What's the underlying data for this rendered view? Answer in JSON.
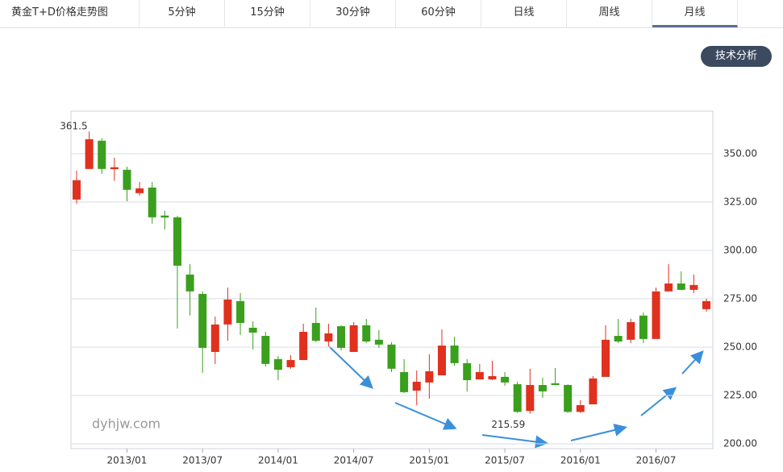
{
  "header": {
    "title": "黄金T+D价格走势图",
    "tabs": [
      "5分钟",
      "15分钟",
      "30分钟",
      "60分钟",
      "日线",
      "周线",
      "月线"
    ],
    "button": "技术分析"
  },
  "chart_data": {
    "type": "candlestick",
    "watermark": "dyhjw.com",
    "categories": [
      null,
      null,
      null,
      null,
      "2013/01",
      null,
      null,
      null,
      null,
      null,
      "2013/07",
      null,
      null,
      null,
      null,
      null,
      "2014/01",
      null,
      null,
      null,
      null,
      null,
      "2014/07",
      null,
      null,
      null,
      null,
      null,
      "2015/01",
      null,
      null,
      null,
      null,
      null,
      "2015/07",
      null,
      null,
      null,
      null,
      null,
      "2016/01",
      null,
      null,
      null,
      null,
      null,
      "2016/07",
      null,
      null,
      null,
      null
    ],
    "open": [
      326.3,
      342.1,
      356.7,
      342,
      341.7,
      329.6,
      332.5,
      318,
      317.1,
      287.5,
      277.5,
      247.5,
      261.7,
      273.8,
      260,
      255.8,
      243.8,
      239.6,
      243.3,
      262.5,
      252.9,
      260.8,
      247.5,
      261.3,
      253.8,
      251.3,
      237.1,
      227.5,
      231.7,
      235.4,
      250.8,
      241.7,
      233.3,
      233.3,
      234.6,
      230.8,
      217,
      230.4,
      231.3,
      230.4,
      216.5,
      220.4,
      234.6,
      255.8,
      253.8,
      266.3,
      254.2,
      278.8,
      282.9,
      279.6,
      269.6
    ],
    "high": [
      341.3,
      361.5,
      358,
      348,
      343.3,
      335.4,
      335.4,
      320.4,
      317.9,
      292.9,
      278.8,
      265.8,
      280.8,
      277.9,
      263.3,
      257.9,
      245.4,
      245.8,
      262.1,
      270.4,
      262.1,
      261.3,
      262.9,
      264.6,
      258.8,
      252.5,
      243.8,
      237.9,
      246.3,
      259.2,
      255.4,
      243.8,
      241.3,
      242.9,
      237.1,
      232.1,
      238.8,
      234.2,
      239.2,
      230.8,
      222.5,
      235,
      261.3,
      264.6,
      264.6,
      267.9,
      280.8,
      292.9,
      289.2,
      287.5,
      275
    ],
    "low": [
      324.2,
      342.1,
      339.6,
      336,
      325.4,
      328.3,
      313.8,
      310.8,
      259.6,
      266.3,
      236.7,
      241.3,
      253.3,
      256.3,
      248.8,
      240,
      232.9,
      238.8,
      243.3,
      252.5,
      250.4,
      248.3,
      247.5,
      252.1,
      249.6,
      237.1,
      226.3,
      220,
      223.3,
      235.4,
      240.4,
      227.1,
      233.3,
      232.9,
      230,
      216,
      215.59,
      223.8,
      230.4,
      216,
      216,
      220.4,
      234.6,
      252.1,
      252.1,
      252.1,
      254.2,
      278.8,
      279.6,
      277.9,
      268.3
    ],
    "close": [
      336.3,
      357.5,
      342.1,
      343,
      331.3,
      332.1,
      317.1,
      317,
      292.1,
      278.8,
      249.6,
      261.7,
      274.6,
      262.5,
      257.5,
      241.3,
      238.3,
      243.3,
      257.9,
      253.3,
      257.1,
      249.6,
      261.3,
      252.9,
      251.3,
      238.8,
      226.7,
      232.1,
      237.5,
      250.8,
      241.7,
      232.9,
      237.1,
      235,
      231.7,
      216.5,
      230.4,
      227.1,
      230.4,
      216.5,
      220,
      233.8,
      253.8,
      252.9,
      262.9,
      254.2,
      278.8,
      282.9,
      279.6,
      282.1,
      273.8
    ],
    "up_color": "#e0301e",
    "down_color": "#3a9f1c",
    "ylim": [
      197.5,
      372
    ],
    "yticks": [
      {
        "value": 200,
        "label": "200.00"
      },
      {
        "value": 225,
        "label": "225.00"
      },
      {
        "value": 250,
        "label": "250.00"
      },
      {
        "value": 275,
        "label": "275.00"
      },
      {
        "value": 300,
        "label": "300.00"
      },
      {
        "value": 325,
        "label": "325.00"
      },
      {
        "value": 350,
        "label": "350.00"
      }
    ],
    "grid": true
  }
}
